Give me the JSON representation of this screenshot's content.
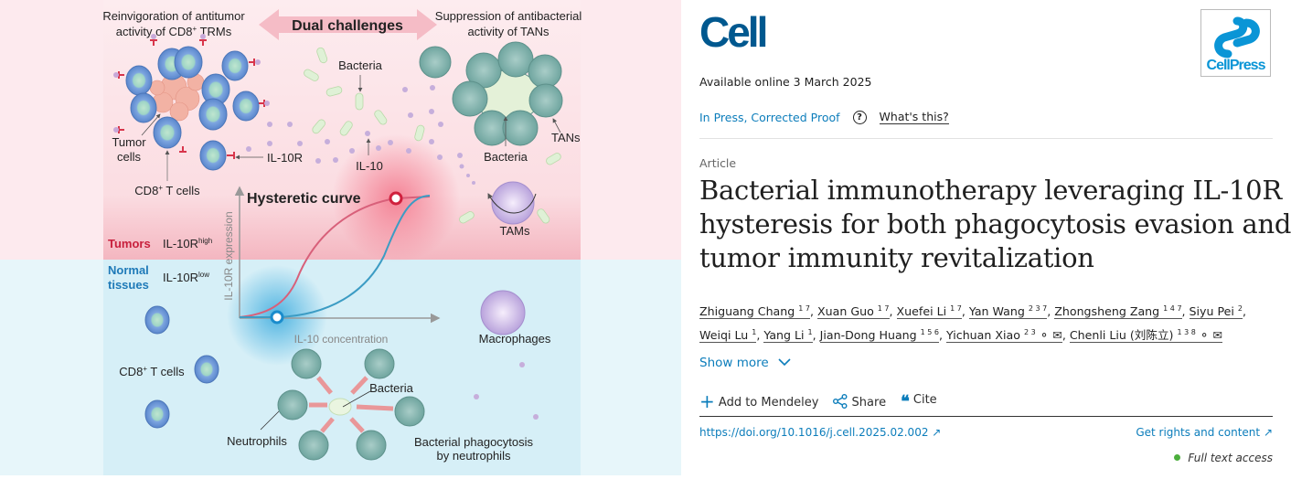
{
  "graphical_abstract": {
    "dual_challenges": "Dual challenges",
    "left_heading_line1": "Reinvigoration of antitumor",
    "left_heading_line2_pre": "activity of CD8",
    "left_heading_line2_sup": "+",
    "left_heading_line2_post": " TRMs",
    "right_heading_line1": "Suppression of antibacterial",
    "right_heading_line2": "activity of TANs",
    "label_bacteria_top": "Bacteria",
    "label_tumor_line1": "Tumor",
    "label_tumor_line2": "cells",
    "label_cd8_top_pre": "CD8",
    "label_cd8_sup": "+",
    "label_cd8_post": " T cells",
    "label_il10r": "IL-10R",
    "label_il10": "IL-10",
    "label_tans": "TANs",
    "label_bacteria_tans": "Bacteria",
    "label_tams": "TAMs",
    "hysteretic_curve": "Hysteretic curve",
    "tumors": "Tumors",
    "il10r_high_base": "IL-10R",
    "il10r_high_sup": "high",
    "normal_line1": "Normal",
    "normal_line2": "tissues",
    "il10r_low_base": "IL-10R",
    "il10r_low_sup": "low",
    "y_axis_label": "IL-10R expression",
    "x_axis_label": "IL-10 concentration",
    "label_macrophages": "Macrophages",
    "label_cd8_bottom_pre": "CD8",
    "label_cd8_bottom_sup": "+",
    "label_cd8_bottom_post": " T cells",
    "label_bacteria_bottom": "Bacteria",
    "label_neutrophils": "Neutrophils",
    "label_phago_line1": "Bacterial phagocytosis",
    "label_phago_line2": "by neutrophils",
    "colors": {
      "tumor_zone": "#f8c9d0",
      "normal_zone": "#d4eef6",
      "tumor_curve": "#d8607a",
      "normal_curve": "#3c9cc4",
      "t_cell": "#6d98d8",
      "neutrophil": "#86b8b2"
    }
  },
  "journal": {
    "logo": "Cell",
    "publisher_logo": "CellPress",
    "available_online": "Available online 3 March 2025",
    "status": "In Press, Corrected Proof",
    "whats_this": "What's this?",
    "article_type": "Article",
    "title_lines": [
      "Bacterial immunotherapy leveraging IL-10R",
      "hysteresis for both phagocytosis evasion and",
      "tumor immunity revitalization"
    ],
    "authors": [
      {
        "name": "Zhiguang Chang",
        "aff": "1 7"
      },
      {
        "name": "Xuan Guo",
        "aff": "1 7"
      },
      {
        "name": "Xuefei Li",
        "aff": "1 7"
      },
      {
        "name": "Yan Wang",
        "aff": "2 3 7"
      },
      {
        "name": "Zhongsheng Zang",
        "aff": "1 4 7"
      },
      {
        "name": "Siyu Pei",
        "aff": "2"
      },
      {
        "name": "Weiqi Lu",
        "aff": "1"
      },
      {
        "name": "Yang Li",
        "aff": "1"
      },
      {
        "name": "Jian-Dong Huang",
        "aff": "1 5 6"
      },
      {
        "name": "Yichuan Xiao",
        "aff": "2 3"
      },
      {
        "name": "Chenli Liu (刘陈立)",
        "aff": "1 3 8"
      }
    ],
    "show_more": "Show more",
    "add_to_mendeley": "Add to Mendeley",
    "share": "Share",
    "cite": "Cite",
    "doi": "https://doi.org/10.1016/j.cell.2025.02.002",
    "rights": "Get rights and content",
    "access": "Full text access",
    "access_color": "#4caf3d"
  }
}
